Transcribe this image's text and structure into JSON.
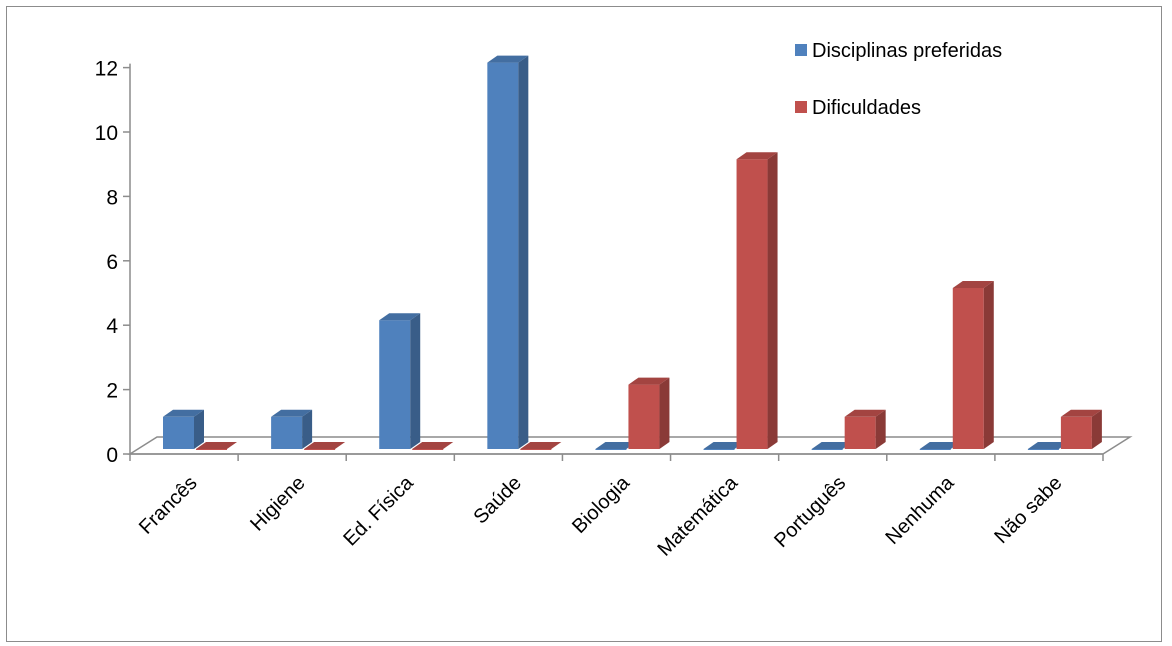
{
  "chart_data": {
    "type": "bar",
    "categories": [
      "Francês",
      "Higiene",
      "Ed. Física",
      "Saúde",
      "Biologia",
      "Matemática",
      "Português",
      "Nenhuma",
      "Não sabe"
    ],
    "series": [
      {
        "name": "Disciplinas preferidas",
        "color": "#4f81bd",
        "values": [
          1,
          1,
          4,
          12,
          0,
          0,
          0,
          0,
          0
        ]
      },
      {
        "name": "Dificuldades",
        "color": "#c0504d",
        "values": [
          0,
          0,
          0,
          0,
          2,
          9,
          1,
          5,
          1
        ]
      }
    ],
    "ylim": [
      0,
      12
    ],
    "yticks": [
      "0",
      "2",
      "4",
      "6",
      "8",
      "10",
      "12"
    ],
    "grid": false,
    "legend_position": "top-right"
  }
}
